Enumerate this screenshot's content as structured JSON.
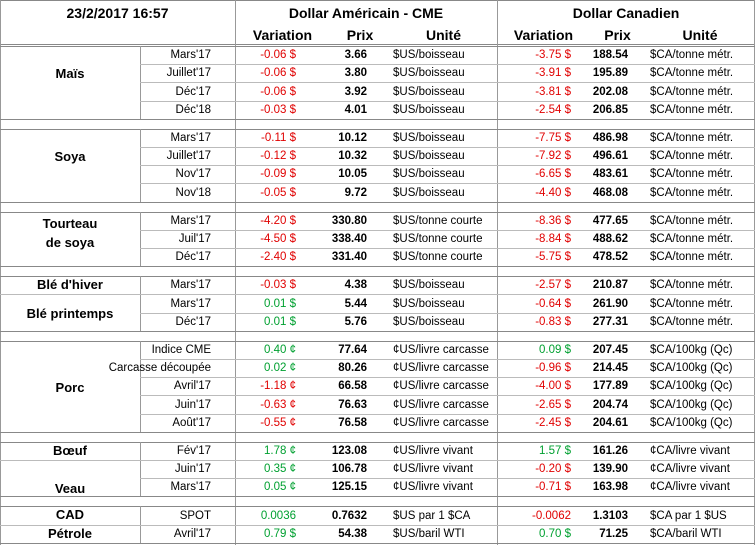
{
  "header": {
    "timestamp": "23/2/2017 16:57",
    "usd_title": "Dollar Américain - CME",
    "cad_title": "Dollar Canadien",
    "usd_columns": [
      "Variation",
      "Prix",
      "Unité"
    ],
    "cad_columns": [
      "Variation",
      "Prix",
      "Unité"
    ]
  },
  "groups": [
    {
      "labels": [
        "Maïs"
      ],
      "rows": [
        [
          "Mars'17",
          "-0.06 $",
          "3.66",
          "$US/boisseau",
          "-3.75 $",
          "188.54",
          "$CA/tonne métr."
        ],
        [
          "Juillet'17",
          "-0.06 $",
          "3.80",
          "$US/boisseau",
          "-3.91 $",
          "195.89",
          "$CA/tonne métr."
        ],
        [
          "Déc'17",
          "-0.06 $",
          "3.92",
          "$US/boisseau",
          "-3.81 $",
          "202.08",
          "$CA/tonne métr."
        ],
        [
          "Déc'18",
          "-0.03 $",
          "4.01",
          "$US/boisseau",
          "-2.54 $",
          "206.85",
          "$CA/tonne métr."
        ]
      ]
    },
    {
      "labels": [
        "Soya"
      ],
      "rows": [
        [
          "Mars'17",
          "-0.11 $",
          "10.12",
          "$US/boisseau",
          "-7.75 $",
          "486.98",
          "$CA/tonne métr."
        ],
        [
          "Juillet'17",
          "-0.12 $",
          "10.32",
          "$US/boisseau",
          "-7.92 $",
          "496.61",
          "$CA/tonne métr."
        ],
        [
          "Nov'17",
          "-0.09 $",
          "10.05",
          "$US/boisseau",
          "-6.65 $",
          "483.61",
          "$CA/tonne métr."
        ],
        [
          "Nov'18",
          "-0.05 $",
          "9.72",
          "$US/boisseau",
          "-4.40 $",
          "468.08",
          "$CA/tonne métr."
        ]
      ]
    },
    {
      "labels": [
        "Tourteau",
        "de soya"
      ],
      "rows": [
        [
          "Mars'17",
          "-4.20 $",
          "330.80",
          "$US/tonne courte",
          "-8.36 $",
          "477.65",
          "$CA/tonne métr."
        ],
        [
          "Juil'17",
          "-4.50 $",
          "338.40",
          "$US/tonne courte",
          "-8.84 $",
          "488.62",
          "$CA/tonne métr."
        ],
        [
          "Déc'17",
          "-2.40 $",
          "331.40",
          "$US/tonne courte",
          "-5.75 $",
          "478.52",
          "$CA/tonne métr."
        ]
      ]
    },
    {
      "labels": [
        "Blé d'hiver",
        "Blé printemps"
      ],
      "rows": [
        [
          "Mars'17",
          "-0.03 $",
          "4.38",
          "$US/boisseau",
          "-2.57 $",
          "210.87",
          "$CA/tonne métr."
        ],
        [
          "Mars'17",
          "0.01 $",
          "5.44",
          "$US/boisseau",
          "-0.64 $",
          "261.90",
          "$CA/tonne métr."
        ],
        [
          "Déc'17",
          "0.01 $",
          "5.76",
          "$US/boisseau",
          "-0.83 $",
          "277.31",
          "$CA/tonne métr."
        ]
      ]
    },
    {
      "labels": [
        "Porc"
      ],
      "rows": [
        [
          "Indice CME",
          "0.40 ¢",
          "77.64",
          "¢US/livre carcasse",
          "0.09 $",
          "207.45",
          "$CA/100kg (Qc)"
        ],
        [
          "Carcasse découpée",
          "0.02 ¢",
          "80.26",
          "¢US/livre carcasse",
          "-0.96 $",
          "214.45",
          "$CA/100kg (Qc)"
        ],
        [
          "Avril'17",
          "-1.18 ¢",
          "66.58",
          "¢US/livre carcasse",
          "-4.00 $",
          "177.89",
          "$CA/100kg (Qc)"
        ],
        [
          "Juin'17",
          "-0.63 ¢",
          "76.63",
          "¢US/livre carcasse",
          "-2.65 $",
          "204.74",
          "$CA/100kg (Qc)"
        ],
        [
          "Août'17",
          "-0.55 ¢",
          "76.58",
          "¢US/livre carcasse",
          "-2.45 $",
          "204.61",
          "$CA/100kg (Qc)"
        ]
      ]
    },
    {
      "labels": [
        "Bœuf",
        "Veau"
      ],
      "rows": [
        [
          "Fév'17",
          "1.78 ¢",
          "123.08",
          "¢US/livre vivant",
          "1.57 $",
          "161.26",
          "¢CA/livre vivant"
        ],
        [
          "Juin'17",
          "0.35 ¢",
          "106.78",
          "¢US/livre vivant",
          "-0.20 $",
          "139.90",
          "¢CA/livre vivant"
        ],
        [
          "Mars'17",
          "0.05 ¢",
          "125.15",
          "¢US/livre vivant",
          "-0.71 $",
          "163.98",
          "¢CA/livre vivant"
        ]
      ]
    },
    {
      "labels": [
        "CAD",
        "Pétrole"
      ],
      "rows": [
        [
          "SPOT",
          "0.0036",
          "0.7632",
          "$US par 1 $CA",
          "-0.0062",
          "1.3103",
          "$CA par 1 $US"
        ],
        [
          "Avril'17",
          "0.79 $",
          "54.38",
          "$US/baril WTI",
          "0.70 $",
          "71.25",
          "$CA/baril WTI"
        ]
      ]
    }
  ]
}
